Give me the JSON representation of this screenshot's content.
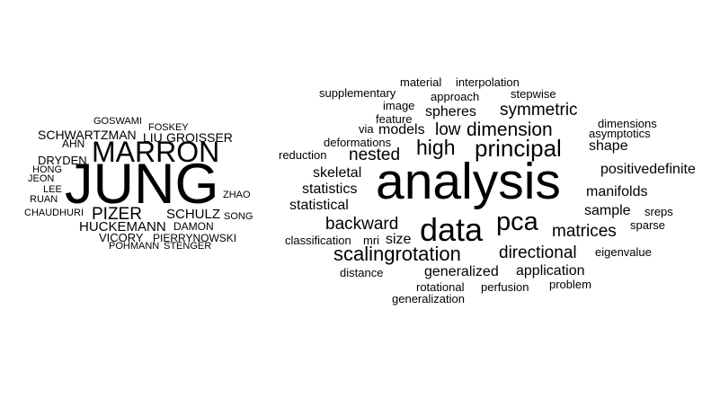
{
  "authors_cloud": [
    {
      "text": "GOSWAMI"
    },
    {
      "text": "FOSKEY"
    },
    {
      "text": "SCHWARTZMAN"
    },
    {
      "text": "LIU"
    },
    {
      "text": "GROISSER"
    },
    {
      "text": "AHN"
    },
    {
      "text": "MARRON"
    },
    {
      "text": "DRYDEN"
    },
    {
      "text": "HONG"
    },
    {
      "text": "JEON"
    },
    {
      "text": "JUNG"
    },
    {
      "text": "LEE"
    },
    {
      "text": "ZHAO"
    },
    {
      "text": "RUAN"
    },
    {
      "text": "CHAUDHURI"
    },
    {
      "text": "PIZER"
    },
    {
      "text": "SCHULZ"
    },
    {
      "text": "SONG"
    },
    {
      "text": "HUCKEMANN"
    },
    {
      "text": "DAMON"
    },
    {
      "text": "VICORY"
    },
    {
      "text": "PIERRYNOWSKI"
    },
    {
      "text": "POHMANN"
    },
    {
      "text": "STENGER"
    }
  ],
  "keywords_cloud": [
    {
      "text": "material"
    },
    {
      "text": "interpolation"
    },
    {
      "text": "supplementary"
    },
    {
      "text": "approach"
    },
    {
      "text": "stepwise"
    },
    {
      "text": "image"
    },
    {
      "text": "spheres"
    },
    {
      "text": "symmetric"
    },
    {
      "text": "feature"
    },
    {
      "text": "dimensions"
    },
    {
      "text": "via"
    },
    {
      "text": "models"
    },
    {
      "text": "low"
    },
    {
      "text": "dimension"
    },
    {
      "text": "asymptotics"
    },
    {
      "text": "deformations"
    },
    {
      "text": "high"
    },
    {
      "text": "principal"
    },
    {
      "text": "shape"
    },
    {
      "text": "reduction"
    },
    {
      "text": "nested"
    },
    {
      "text": "positivedefinite"
    },
    {
      "text": "skeletal"
    },
    {
      "text": "analysis"
    },
    {
      "text": "statistics"
    },
    {
      "text": "manifolds"
    },
    {
      "text": "statistical"
    },
    {
      "text": "sample"
    },
    {
      "text": "sreps"
    },
    {
      "text": "backward"
    },
    {
      "text": "pca"
    },
    {
      "text": "data"
    },
    {
      "text": "sparse"
    },
    {
      "text": "matrices"
    },
    {
      "text": "classification"
    },
    {
      "text": "mri"
    },
    {
      "text": "size"
    },
    {
      "text": "scalingrotation"
    },
    {
      "text": "directional"
    },
    {
      "text": "eigenvalue"
    },
    {
      "text": "distance"
    },
    {
      "text": "generalized"
    },
    {
      "text": "application"
    },
    {
      "text": "rotational"
    },
    {
      "text": "perfusion"
    },
    {
      "text": "problem"
    },
    {
      "text": "generalization"
    }
  ]
}
